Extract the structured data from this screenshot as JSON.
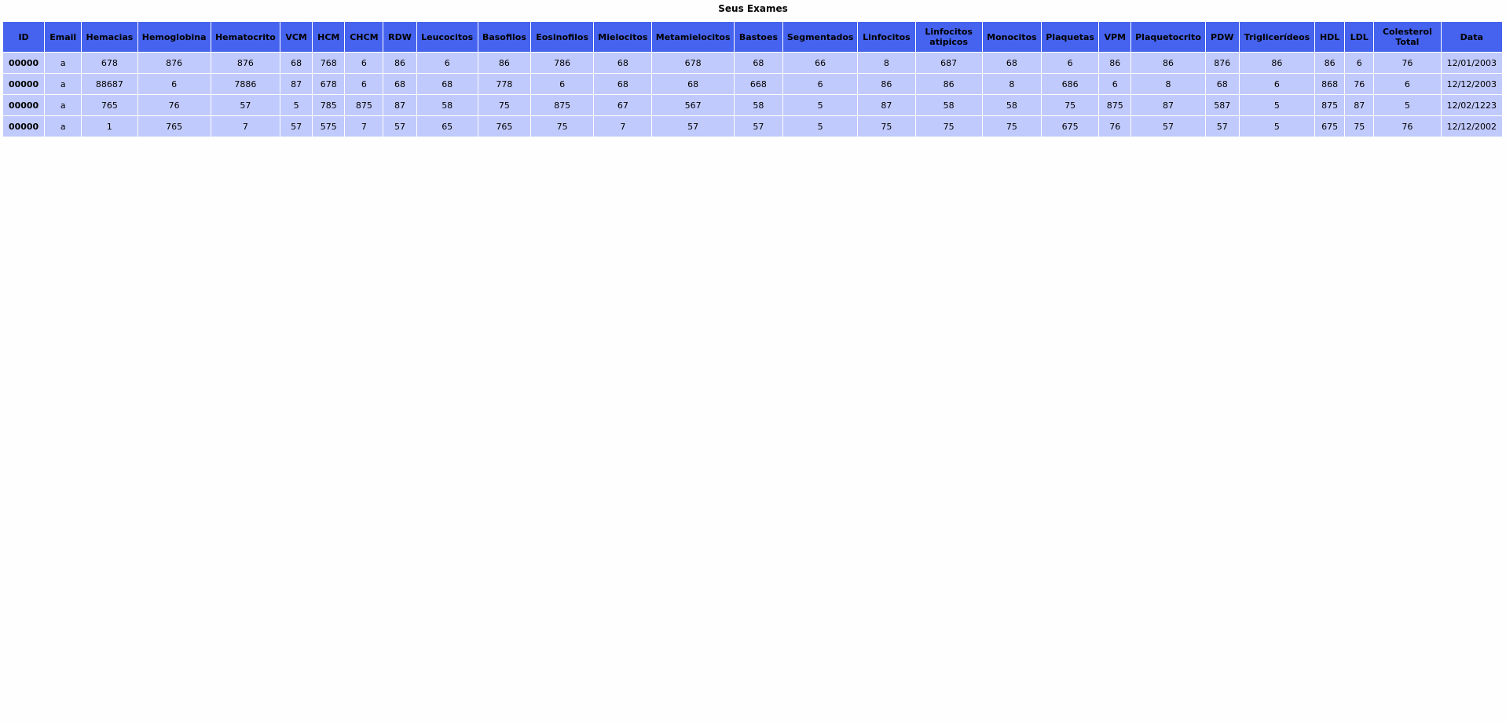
{
  "page": {
    "title": "Seus Exames"
  },
  "table": {
    "headers": [
      "ID",
      "Email",
      "Hemacias",
      "Hemoglobina",
      "Hematocrito",
      "VCM",
      "HCM",
      "CHCM",
      "RDW",
      "Leucocitos",
      "Basofilos",
      "Eosinofilos",
      "Mielocitos",
      "Metamielocitos",
      "Bastoes",
      "Segmentados",
      "Linfocitos",
      "Linfocitos atipicos",
      "Monocitos",
      "Plaquetas",
      "VPM",
      "Plaquetocrito",
      "PDW",
      "Triglicerídeos",
      "HDL",
      "LDL",
      "Colesterol Total",
      "Data"
    ],
    "rows": [
      [
        "00000",
        "a",
        "678",
        "876",
        "876",
        "68",
        "768",
        "6",
        "86",
        "6",
        "86",
        "786",
        "68",
        "678",
        "68",
        "66",
        "8",
        "687",
        "68",
        "6",
        "86",
        "86",
        "876",
        "86",
        "86",
        "6",
        "76",
        "12/01/2003"
      ],
      [
        "00000",
        "a",
        "88687",
        "6",
        "7886",
        "87",
        "678",
        "6",
        "68",
        "68",
        "778",
        "6",
        "68",
        "68",
        "668",
        "6",
        "86",
        "86",
        "8",
        "686",
        "6",
        "8",
        "68",
        "6",
        "868",
        "76",
        "6",
        "12/12/2003"
      ],
      [
        "00000",
        "a",
        "765",
        "76",
        "57",
        "5",
        "785",
        "875",
        "87",
        "58",
        "75",
        "875",
        "67",
        "567",
        "58",
        "5",
        "87",
        "58",
        "58",
        "75",
        "875",
        "87",
        "587",
        "5",
        "875",
        "87",
        "5",
        "12/02/1223"
      ],
      [
        "00000",
        "a",
        "1",
        "765",
        "7",
        "57",
        "575",
        "7",
        "57",
        "65",
        "765",
        "75",
        "7",
        "57",
        "57",
        "5",
        "75",
        "75",
        "75",
        "675",
        "76",
        "57",
        "57",
        "5",
        "675",
        "75",
        "76",
        "12/12/2002"
      ]
    ]
  },
  "colors": {
    "header_bg": "#4563ee",
    "cell_bg": "#c1cafc",
    "page_bg": "#fefefe"
  }
}
